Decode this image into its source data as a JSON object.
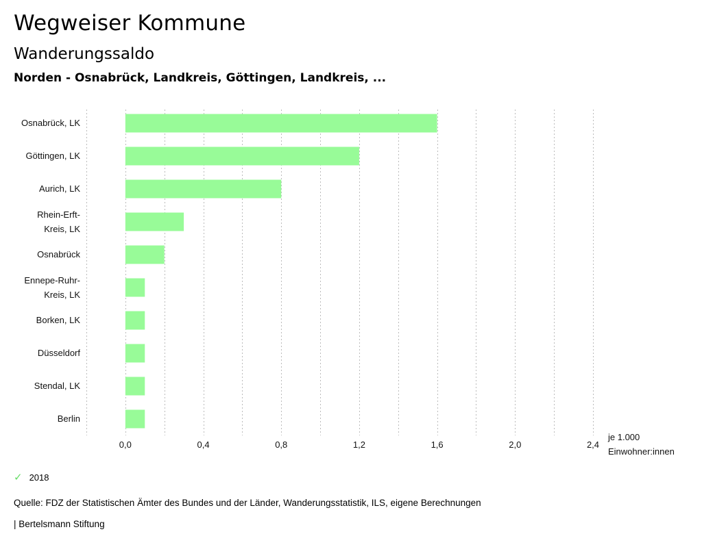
{
  "header": {
    "title": "Wegweiser Kommune",
    "subtitle": "Wanderungssaldo",
    "region": "Norden - Osnabrück, Landkreis, Göttingen, Landkreis, ..."
  },
  "chart_data": {
    "type": "bar",
    "orientation": "horizontal",
    "categories": [
      [
        "Osnabrück, LK"
      ],
      [
        "Göttingen, LK"
      ],
      [
        "Aurich, LK"
      ],
      [
        "Rhein-Erft-",
        "Kreis, LK"
      ],
      [
        "Osnabrück"
      ],
      [
        "Ennepe-Ruhr-",
        "Kreis, LK"
      ],
      [
        "Borken, LK"
      ],
      [
        "Düsseldorf"
      ],
      [
        "Stendal, LK"
      ],
      [
        "Berlin"
      ]
    ],
    "series": [
      {
        "name": "2018",
        "values": [
          1.6,
          1.2,
          0.8,
          0.3,
          0.2,
          0.1,
          0.1,
          0.1,
          0.1,
          0.1
        ]
      }
    ],
    "x_ticks": [
      "0,0",
      "0,4",
      "0,8",
      "1,2",
      "1,6",
      "2,0",
      "2,4"
    ],
    "x_tick_values": [
      0,
      0.4,
      0.8,
      1.2,
      1.6,
      2.0,
      2.4
    ],
    "xlim": [
      -0.2,
      2.4
    ],
    "unit_label": [
      "je 1.000",
      "Einwohner:innen"
    ],
    "bar_color": "#98fb98",
    "grid": true
  },
  "legend": {
    "label": "2018",
    "check_icon": "✓",
    "color": "#66dd66"
  },
  "footer": {
    "source": "Quelle: FDZ der Statistischen Ämter des Bundes und der Länder, Wanderungsstatistik, ILS, eigene Berechnungen",
    "credit": "| Bertelsmann Stiftung"
  }
}
